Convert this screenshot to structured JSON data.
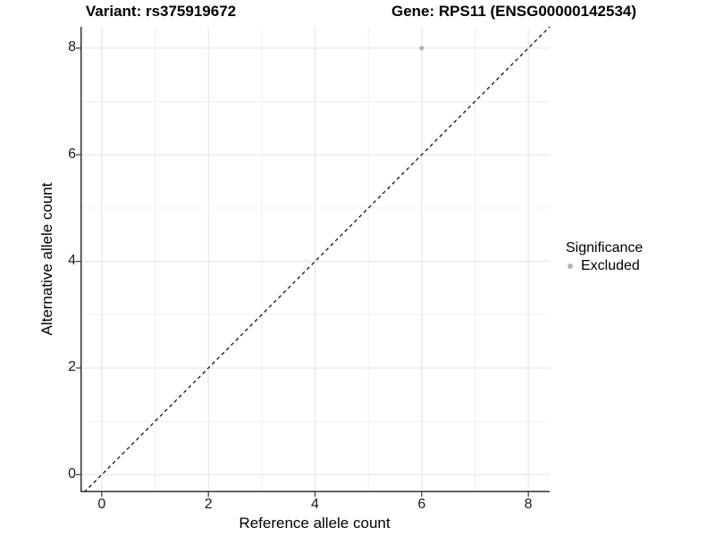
{
  "header": {
    "variant_title": "Variant: rs375919672",
    "gene_title": "Gene: RPS11 (ENSG00000142534)"
  },
  "chart_data": {
    "type": "scatter",
    "title_left": "Variant: rs375919672",
    "title_right": "Gene: RPS11 (ENSG00000142534)",
    "xlabel": "Reference allele count",
    "ylabel": "Alternative allele count",
    "xlim": [
      -0.4,
      8.4
    ],
    "ylim": [
      -0.33,
      8.4
    ],
    "xticks": [
      0,
      2,
      4,
      6,
      8
    ],
    "yticks": [
      0,
      2,
      4,
      6,
      8
    ],
    "xminor": [
      1,
      3,
      5,
      7
    ],
    "yminor": [
      1,
      3,
      5,
      7
    ],
    "grid": "major+minor",
    "points": [
      {
        "x": 6,
        "y": 8,
        "series": "Excluded"
      }
    ],
    "identity_line": {
      "style": "dashed",
      "equation": "y = x"
    },
    "legend": {
      "title": "Significance",
      "position": "right",
      "items": [
        {
          "label": "Excluded",
          "color": "#b5b5b5"
        }
      ]
    }
  },
  "colors": {
    "background": "#ffffff",
    "grid_major": "#e3e3e3",
    "grid_minor": "#f0f0f0",
    "axis_line": "#333333",
    "tick_mark": "#333333",
    "tick_text": "#1a1a1a",
    "title_text": "#000000",
    "point": "#b5b5b5",
    "identity_line": "#000000"
  }
}
